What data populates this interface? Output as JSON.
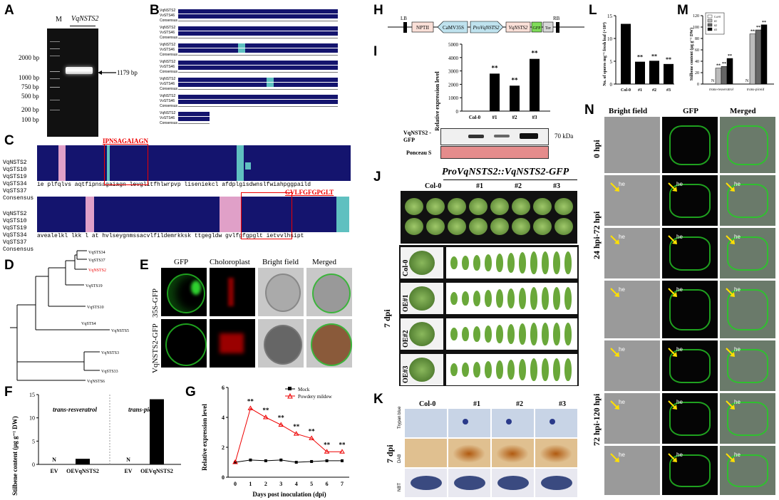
{
  "panels": {
    "A": {
      "label": "A",
      "lane_m": "M",
      "lane_gene": "VqNSTS2",
      "band_label": "1179 bp",
      "markers": [
        "2000 bp",
        "1000 bp",
        "750 bp",
        "500 bp",
        "200 bp",
        "100 bp"
      ]
    },
    "B": {
      "label": "B",
      "rows": [
        "VqNSTS2",
        "VvSTS46",
        "Consensus"
      ]
    },
    "C": {
      "label": "C",
      "motif1": "IPNSAGAIAGN",
      "motif2": "GVLFGFGPGLT",
      "seqs": [
        "VqNSTS2",
        "VqSTS10",
        "VqSTS19",
        "VqSTS34",
        "VqSTS37"
      ],
      "consensus_label": "Consensus",
      "consensus1": "ie plfqlvs aqtfipnsagaiagn levglitfhlwrpvp liseniekcl afdplgisdwnslfwiahpggpaild",
      "consensus2": "avealelkl lkk l at hvlseygnmssacvlfildemrkksk ttgegldw gvlfgfgpglt ietvvlhsipt"
    },
    "D": {
      "label": "D",
      "leaves": [
        "VqSTS34",
        "VqSTS37",
        "VqNSTS2",
        "VqSTS19",
        "VqSTS10",
        "VqSTS4",
        "VqNSTS5",
        "VqNSTS3",
        "VqSTS33",
        "VqNSTS6"
      ]
    },
    "E": {
      "label": "E",
      "cols": [
        "GFP",
        "Choloroplast",
        "Bright field",
        "Merged"
      ],
      "rows": [
        "35S-GFP",
        "VqNSTS2-GFP"
      ]
    },
    "F": {
      "label": "F",
      "ylabel": "Stilbene content (μg g⁻¹ DW)",
      "group1": "trans-resveratrol",
      "group2": "trans-piceid",
      "nd": "N",
      "xticks": [
        "EV",
        "OEVqNSTS2",
        "EV",
        "OEVqNSTS2"
      ]
    },
    "G": {
      "label": "G",
      "ylabel": "Relative expression level",
      "xlabel": "Days post inoculation (dpi)",
      "legend": [
        "Mock",
        "Powdery mildew"
      ],
      "sig": "**"
    },
    "H": {
      "label": "H",
      "lb": "LB",
      "rb": "RB",
      "parts": [
        "NPTII",
        "CaMV35S",
        "ProVqNSTS2",
        "VqNSTS2",
        "GFP",
        "Ter"
      ]
    },
    "I": {
      "label": "I",
      "ylabel": "Relative expression level",
      "blot_label": "VqNSTS2 -GFP",
      "kda": "70 kDa",
      "ponceau": "Ponceau S"
    },
    "J": {
      "label": "J",
      "title": "ProVqNSTS2::VqNSTS2-GFP",
      "top_cols": [
        "Col-0",
        "#1",
        "#2",
        "#3"
      ],
      "rows": [
        "Col-0",
        "OE#1",
        "OE#2",
        "OE#3"
      ],
      "time": "7 dpi"
    },
    "K": {
      "label": "K",
      "cols": [
        "Col-0",
        "#1",
        "#2",
        "#3"
      ],
      "rows": [
        "Trypan blue",
        "DAB",
        "NBT"
      ],
      "time": "7 dpi"
    },
    "L": {
      "label": "L",
      "ylabel": "No. of spores mg⁻¹ fresh leaf (×10⁴)",
      "xticks": [
        "Col-0",
        "#1",
        "#2",
        "#3"
      ]
    },
    "M": {
      "label": "M",
      "ylabel": "Stilbene content (μg g⁻¹ DW)",
      "xticks": [
        "trans-resveratrol",
        "trans-piceid"
      ],
      "legend": [
        "Col-0",
        "#1",
        "#2",
        "#3"
      ],
      "nd": "N"
    },
    "N": {
      "label": "N",
      "cols": [
        "Bright field",
        "GFP",
        "Merged"
      ],
      "rows": [
        "0 hpi",
        "24 hpi-72 hpi",
        "72 hpi-120 hpi"
      ],
      "he": "he"
    }
  },
  "chart_data": [
    {
      "panel": "F",
      "type": "bar",
      "title": "",
      "categories": [
        "EV",
        "OEVqNSTS2",
        "EV",
        "OEVqNSTS2"
      ],
      "values": [
        0,
        1.2,
        0,
        14
      ],
      "ylim": [
        0,
        15
      ],
      "yticks": [
        0,
        5,
        10,
        15
      ],
      "xlabel": "",
      "ylabel": "Stilbene content (μg g⁻¹ DW)"
    },
    {
      "panel": "G",
      "type": "line",
      "x": [
        0,
        1,
        2,
        3,
        4,
        5,
        6,
        7
      ],
      "xlabel": "Days post inoculation (dpi)",
      "ylabel": "Relative expression level",
      "ylim": [
        0,
        6
      ],
      "yticks": [
        0,
        2,
        4,
        6
      ],
      "series": [
        {
          "name": "Mock",
          "values": [
            1.0,
            1.15,
            1.1,
            1.15,
            1.0,
            1.05,
            1.1,
            1.1
          ]
        },
        {
          "name": "Powdery mildew",
          "values": [
            1.0,
            4.6,
            4.0,
            3.5,
            2.9,
            2.6,
            1.7,
            1.7
          ]
        }
      ]
    },
    {
      "panel": "I",
      "type": "bar",
      "categories": [
        "Col-0",
        "#1",
        "#2",
        "#3"
      ],
      "values": [
        0,
        2800,
        1900,
        3900
      ],
      "ylim": [
        0,
        5000
      ],
      "yticks": [
        0,
        1000,
        2000,
        3000,
        4000,
        5000
      ],
      "ylabel": "Relative expression level",
      "sig": [
        "",
        "**",
        "**",
        "**"
      ]
    },
    {
      "panel": "L",
      "type": "bar",
      "categories": [
        "Col-0",
        "#1",
        "#2",
        "#3"
      ],
      "values": [
        13.2,
        4.9,
        5.1,
        4.4
      ],
      "ylim": [
        0,
        15
      ],
      "yticks": [
        0,
        5,
        10,
        15
      ],
      "ylabel": "No. of spores mg⁻¹ fresh leaf (×10⁴)",
      "sig": [
        "",
        "**",
        "**",
        "**"
      ]
    },
    {
      "panel": "M",
      "type": "bar",
      "categories": [
        "trans-resveratrol",
        "trans-piceid"
      ],
      "ylim": [
        0,
        120
      ],
      "yticks": [
        0,
        20,
        40,
        60,
        80,
        100,
        120
      ],
      "series": [
        {
          "name": "Col-0",
          "values": [
            0,
            0
          ]
        },
        {
          "name": "#1",
          "values": [
            28,
            88
          ]
        },
        {
          "name": "#2",
          "values": [
            31,
            95
          ]
        },
        {
          "name": "#3",
          "values": [
            45,
            104
          ]
        }
      ]
    }
  ]
}
